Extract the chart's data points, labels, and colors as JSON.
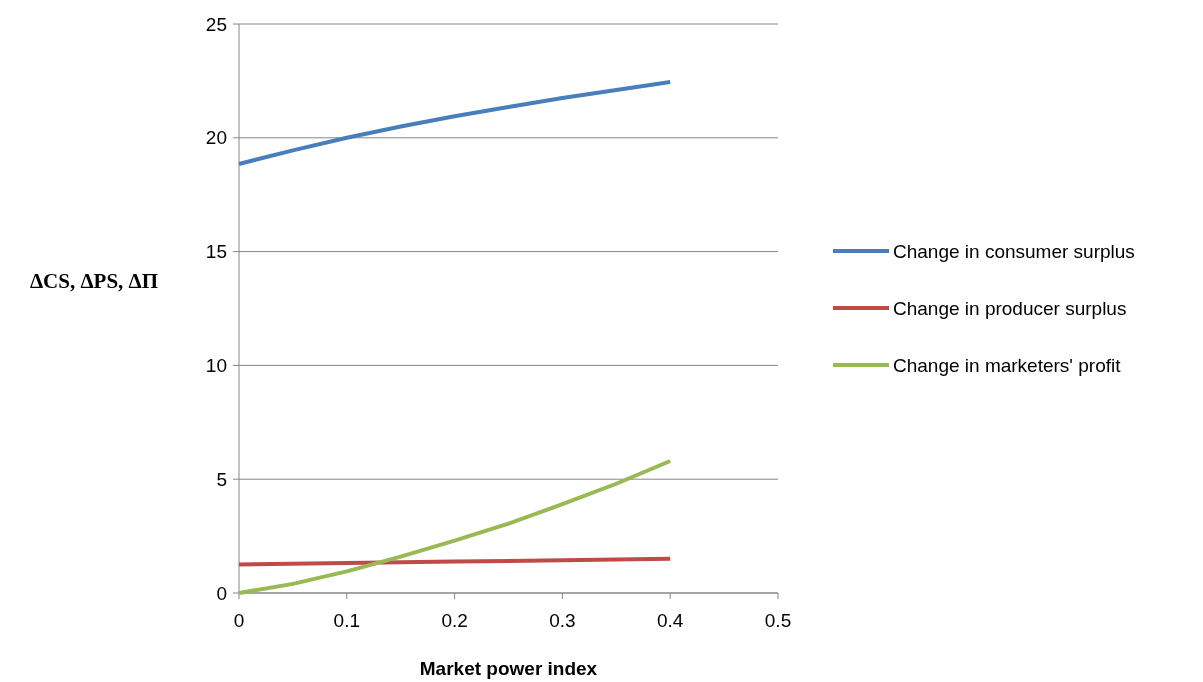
{
  "chart_data": {
    "type": "line",
    "xlabel": "Market power index",
    "ylabel": "ΔCS, ΔPS, ΔΠ",
    "xlim": [
      0,
      0.5
    ],
    "xticks": [
      0,
      0.1,
      0.2,
      0.3,
      0.4,
      0.5
    ],
    "ylim": [
      0,
      25
    ],
    "yticks": [
      0,
      5,
      10,
      15,
      20,
      25
    ],
    "grid": "y",
    "legend": "right",
    "series": [
      {
        "name": "Change in consumer surplus",
        "color": "#4a7ebb",
        "x": [
          0,
          0.05,
          0.1,
          0.15,
          0.2,
          0.25,
          0.3,
          0.35,
          0.4
        ],
        "values": [
          18.85,
          19.45,
          20,
          20.5,
          20.95,
          21.35,
          21.75,
          22.1,
          22.45
        ]
      },
      {
        "name": "Change in producer surplus",
        "color": "#be4b48",
        "x": [
          0,
          0.1,
          0.2,
          0.3,
          0.4
        ],
        "values": [
          1.25,
          1.32,
          1.38,
          1.44,
          1.5
        ]
      },
      {
        "name": "Change in marketers' profit",
        "color": "#98b954",
        "x": [
          0,
          0.05,
          0.1,
          0.15,
          0.2,
          0.25,
          0.3,
          0.35,
          0.4
        ],
        "values": [
          0,
          0.4,
          0.95,
          1.6,
          2.3,
          3.05,
          3.9,
          4.8,
          5.8
        ]
      }
    ]
  }
}
